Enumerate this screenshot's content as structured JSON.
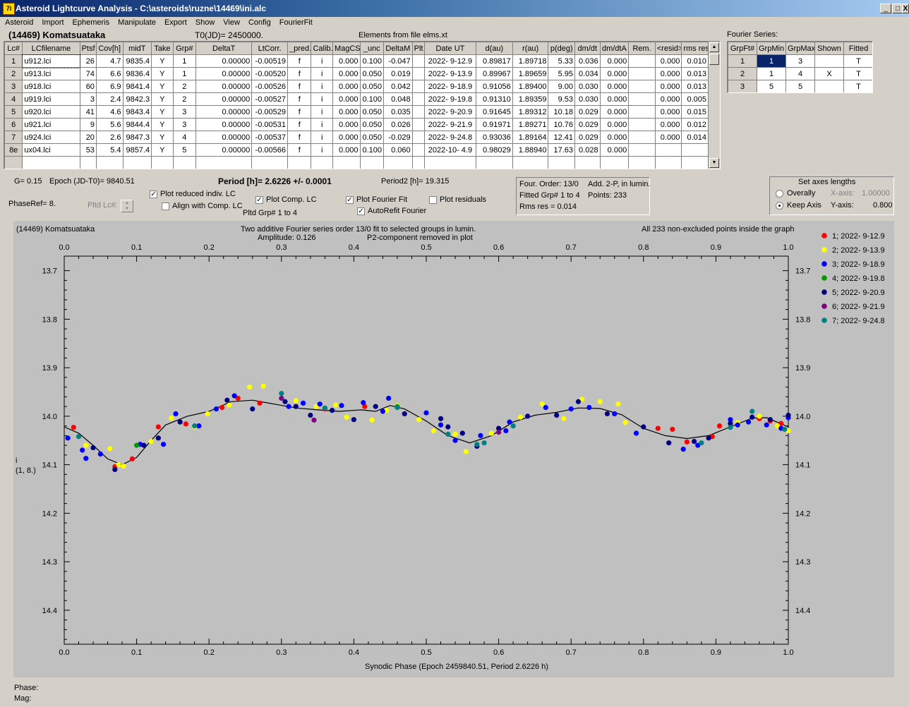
{
  "window": {
    "title": "Asteroid Lightcurve Analysis - C:\\asteroids\\ruzne\\14469\\ini.alc",
    "app_icon": "7i",
    "minimize": "_",
    "maximize": "□",
    "close": "X"
  },
  "menu": [
    "Asteroid",
    "Import",
    "Ephemeris",
    "Manipulate",
    "Export",
    "Show",
    "View",
    "Config",
    "FourierFit"
  ],
  "header": {
    "asteroid": "(14469) Komatsuataka",
    "t0": "T0(JD)= 2450000.",
    "elements": "Elements from file elms.xt",
    "fourier_label": "Fourier Series:"
  },
  "lc_table": {
    "columns": [
      "Lc#",
      "LCfilename",
      "Ptsf",
      "Cov[h]",
      "midT",
      "Take",
      "Grp#",
      "DeltaT",
      "LtCorr.",
      "_pred.",
      "Calib.",
      "MagCS",
      "_unc",
      "DeltaM",
      "Plt",
      "Date UT",
      "d(au)",
      "r(au)",
      "p(deg)",
      "dm/dt",
      "dm/dtA",
      "Rem.",
      "<resid>",
      "rms res"
    ],
    "rows": [
      [
        "1",
        "u912.lci",
        "26",
        "4.7",
        "9835.4",
        "Y",
        "1",
        "0.00000",
        "-0.00519",
        "f",
        "i",
        "0.000",
        "0.100",
        "-0.047",
        "",
        "2022- 9-12.9",
        "0.89817",
        "1.89718",
        "5.33",
        "0.036",
        "0.000",
        "",
        "0.000",
        "0.010"
      ],
      [
        "2",
        "u913.lci",
        "74",
        "6.6",
        "9836.4",
        "Y",
        "1",
        "0.00000",
        "-0.00520",
        "f",
        "i",
        "0.000",
        "0.050",
        "0.019",
        "",
        "2022- 9-13.9",
        "0.89967",
        "1.89659",
        "5.95",
        "0.034",
        "0.000",
        "",
        "0.000",
        "0.013"
      ],
      [
        "3",
        "u918.lci",
        "60",
        "6.9",
        "9841.4",
        "Y",
        "2",
        "0.00000",
        "-0.00526",
        "f",
        "i",
        "0.000",
        "0.050",
        "0.042",
        "",
        "2022- 9-18.9",
        "0.91056",
        "1.89400",
        "9.00",
        "0.030",
        "0.000",
        "",
        "0.000",
        "0.013"
      ],
      [
        "4",
        "u919.lci",
        "3",
        "2.4",
        "9842.3",
        "Y",
        "2",
        "0.00000",
        "-0.00527",
        "f",
        "i",
        "0.000",
        "0.100",
        "0.048",
        "",
        "2022- 9-19.8",
        "0.91310",
        "1.89359",
        "9.53",
        "0.030",
        "0.000",
        "",
        "0.000",
        "0.005"
      ],
      [
        "5",
        "u920.lci",
        "41",
        "4.6",
        "9843.4",
        "Y",
        "3",
        "0.00000",
        "-0.00529",
        "f",
        "i",
        "0.000",
        "0.050",
        "0.035",
        "",
        "2022- 9-20.9",
        "0.91645",
        "1.89312",
        "10.18",
        "0.029",
        "0.000",
        "",
        "0.000",
        "0.015"
      ],
      [
        "6",
        "u921.lci",
        "9",
        "5.6",
        "9844.4",
        "Y",
        "3",
        "0.00000",
        "-0.00531",
        "f",
        "i",
        "0.000",
        "0.050",
        "0.026",
        "",
        "2022- 9-21.9",
        "0.91971",
        "1.89271",
        "10.76",
        "0.029",
        "0.000",
        "",
        "0.000",
        "0.012"
      ],
      [
        "7",
        "u924.lci",
        "20",
        "2.6",
        "9847.3",
        "Y",
        "4",
        "0.00000",
        "-0.00537",
        "f",
        "i",
        "0.000",
        "0.050",
        "-0.029",
        "",
        "2022- 9-24.8",
        "0.93036",
        "1.89164",
        "12.41",
        "0.029",
        "0.000",
        "",
        "0.000",
        "0.014"
      ],
      [
        "8e",
        "ux04.lci",
        "53",
        "5.4",
        "9857.4",
        "Y",
        "5",
        "0.00000",
        "-0.00566",
        "f",
        "i",
        "0.000",
        "0.100",
        "0.060",
        "",
        "2022-10- 4.9",
        "0.98029",
        "1.88940",
        "17.63",
        "0.028",
        "0.000",
        "",
        "",
        ""
      ]
    ]
  },
  "fourier_table": {
    "columns": [
      "GrpFt#",
      "GrpMin",
      "GrpMax",
      "Shown",
      "Fitted"
    ],
    "rows": [
      [
        "1",
        "1",
        "3",
        "",
        "T"
      ],
      [
        "2",
        "1",
        "4",
        "X",
        "T"
      ],
      [
        "3",
        "5",
        "5",
        "",
        "T"
      ]
    ]
  },
  "controls": {
    "g": "G= 0.15",
    "epoch": "Epoch (JD-T0)= 9840.51",
    "period": "Period [h]= 2.6226 +/- 0.0001",
    "period2": "Period2 [h]= 19.315",
    "phaseref": "PhaseRef= 8.",
    "pltd_lc": "Pltd Lc#:",
    "plot_reduced": "Plot reduced indiv. LC",
    "align_comp": "Align with Comp. LC",
    "plot_comp": "Plot Comp. LC",
    "pltd_grp": "Pltd Grp#  1   to   4",
    "plot_fourier": "Plot Fourier Fit",
    "autorefit": "AutoRefit Fourier",
    "plot_residuals": "Plot residuals",
    "check_plot_reduced": true,
    "check_align_comp": false,
    "check_plot_comp": true,
    "check_plot_fourier": true,
    "check_autorefit": true,
    "check_plot_residuals": false
  },
  "fit_info": {
    "order": "Four. Order: 13/0",
    "add": "Add. 2-P, in lumin.",
    "fitted": "Fitted Grp# 1 to 4",
    "points": "Points: 233",
    "rms": "Rms res      = 0.014"
  },
  "axes_panel": {
    "title": "Set axes lengths",
    "overally": "Overally",
    "keep_axis": "Keep Axis",
    "x_label": "X-axis:",
    "x_value": "1.00000",
    "y_label": "Y-axis:",
    "y_value": "0.800",
    "selected": "keep_axis"
  },
  "plot": {
    "name": "(14469) Komatsuataka",
    "desc1": "Two additive Fourier series order 13/0 fit to selected groups in lumin.",
    "desc2_left": "Amplitude: 0.126",
    "desc2_right": "P2-component removed in plot",
    "right_note": "All 233 non-excluded points inside the graph",
    "ylabel_line1": "i",
    "ylabel_line2": "(1, 8.)",
    "xlabel": "Synodic Phase (Epoch 2459840.51, Period 2.6226 h)",
    "phase_label": "Phase:",
    "mag_label": "Mag:"
  },
  "chart_data": {
    "type": "scatter",
    "xlim": [
      0,
      1
    ],
    "ylim": [
      14.47,
      13.67
    ],
    "y_inverted": true,
    "xticks": [
      "0.0",
      "0.1",
      "0.2",
      "0.3",
      "0.4",
      "0.5",
      "0.6",
      "0.7",
      "0.8",
      "0.9",
      "1.0"
    ],
    "yticks": [
      "13.7",
      "13.8",
      "13.9",
      "14.0",
      "14.1",
      "14.2",
      "14.3",
      "14.4"
    ],
    "legend_position": "right",
    "series": [
      {
        "name": "1; 2022- 9-12.9",
        "color": "#ff0000",
        "points": [
          [
            0.013,
            14.023
          ],
          [
            0.07,
            14.104
          ],
          [
            0.094,
            14.088
          ],
          [
            0.13,
            14.022
          ],
          [
            0.168,
            14.016
          ],
          [
            0.218,
            13.982
          ],
          [
            0.24,
            13.963
          ],
          [
            0.27,
            13.973
          ],
          [
            0.36,
            13.985
          ],
          [
            0.415,
            13.98
          ],
          [
            0.82,
            14.025
          ],
          [
            0.84,
            14.027
          ],
          [
            0.86,
            14.053
          ],
          [
            0.895,
            14.042
          ],
          [
            0.905,
            14.02
          ],
          [
            0.96,
            14.005
          ],
          [
            0.975,
            14.01
          ],
          [
            0.99,
            14.015
          ]
        ]
      },
      {
        "name": "2; 2022- 9-13.9",
        "color": "#ffff00",
        "points": [
          [
            0.03,
            14.06
          ],
          [
            0.063,
            14.067
          ],
          [
            0.075,
            14.1
          ],
          [
            0.082,
            14.103
          ],
          [
            0.12,
            14.052
          ],
          [
            0.148,
            14.004
          ],
          [
            0.18,
            14.022
          ],
          [
            0.198,
            13.995
          ],
          [
            0.228,
            13.977
          ],
          [
            0.256,
            13.94
          ],
          [
            0.275,
            13.938
          ],
          [
            0.32,
            13.968
          ],
          [
            0.348,
            13.98
          ],
          [
            0.375,
            13.977
          ],
          [
            0.39,
            14.002
          ],
          [
            0.425,
            14.008
          ],
          [
            0.445,
            13.988
          ],
          [
            0.46,
            13.978
          ],
          [
            0.49,
            14.007
          ],
          [
            0.51,
            14.03
          ],
          [
            0.54,
            14.037
          ],
          [
            0.555,
            14.073
          ],
          [
            0.59,
            14.035
          ],
          [
            0.63,
            14.002
          ],
          [
            0.66,
            13.975
          ],
          [
            0.69,
            14.005
          ],
          [
            0.715,
            13.965
          ],
          [
            0.74,
            13.97
          ],
          [
            0.765,
            13.975
          ],
          [
            0.775,
            14.013
          ],
          [
            0.93,
            14.013
          ],
          [
            0.96,
            14.0
          ],
          [
            0.985,
            14.02
          ],
          [
            1.0,
            14.03
          ]
        ]
      },
      {
        "name": "3; 2022- 9-18.9",
        "color": "#0000ff",
        "points": [
          [
            0.005,
            14.045
          ],
          [
            0.025,
            14.07
          ],
          [
            0.03,
            14.087
          ],
          [
            0.05,
            14.078
          ],
          [
            0.105,
            14.058
          ],
          [
            0.137,
            14.058
          ],
          [
            0.154,
            13.995
          ],
          [
            0.186,
            14.02
          ],
          [
            0.21,
            13.985
          ],
          [
            0.235,
            13.958
          ],
          [
            0.31,
            13.98
          ],
          [
            0.33,
            13.973
          ],
          [
            0.353,
            13.975
          ],
          [
            0.383,
            13.978
          ],
          [
            0.413,
            13.972
          ],
          [
            0.44,
            13.99
          ],
          [
            0.448,
            13.963
          ],
          [
            0.5,
            13.993
          ],
          [
            0.52,
            14.018
          ],
          [
            0.54,
            14.05
          ],
          [
            0.575,
            14.04
          ],
          [
            0.61,
            14.03
          ],
          [
            0.615,
            14.012
          ],
          [
            0.665,
            13.982
          ],
          [
            0.7,
            13.985
          ],
          [
            0.725,
            13.982
          ],
          [
            0.76,
            13.995
          ],
          [
            0.79,
            14.035
          ],
          [
            0.855,
            14.068
          ],
          [
            0.875,
            14.06
          ],
          [
            0.92,
            14.007
          ],
          [
            0.93,
            14.018
          ],
          [
            0.945,
            14.012
          ],
          [
            0.97,
            14.018
          ],
          [
            0.99,
            14.025
          ],
          [
            1.0,
            14.003
          ]
        ]
      },
      {
        "name": "4; 2022- 9-19.8",
        "color": "#009900",
        "points": [
          [
            0.1,
            14.06
          ],
          [
            0.46,
            13.98
          ]
        ]
      },
      {
        "name": "5; 2022- 9-20.9",
        "color": "#000080",
        "points": [
          [
            0.04,
            14.065
          ],
          [
            0.07,
            14.11
          ],
          [
            0.11,
            14.06
          ],
          [
            0.13,
            14.045
          ],
          [
            0.16,
            14.012
          ],
          [
            0.225,
            13.967
          ],
          [
            0.26,
            13.985
          ],
          [
            0.305,
            13.97
          ],
          [
            0.32,
            13.98
          ],
          [
            0.34,
            13.998
          ],
          [
            0.37,
            13.988
          ],
          [
            0.4,
            14.007
          ],
          [
            0.43,
            13.98
          ],
          [
            0.47,
            13.995
          ],
          [
            0.52,
            14.005
          ],
          [
            0.53,
            14.022
          ],
          [
            0.55,
            14.035
          ],
          [
            0.57,
            14.062
          ],
          [
            0.6,
            14.025
          ],
          [
            0.64,
            14.0
          ],
          [
            0.68,
            13.998
          ],
          [
            0.71,
            13.97
          ],
          [
            0.75,
            13.995
          ],
          [
            0.8,
            14.022
          ],
          [
            0.835,
            14.055
          ],
          [
            0.87,
            14.052
          ],
          [
            0.89,
            14.045
          ],
          [
            0.92,
            14.015
          ],
          [
            0.95,
            14.002
          ],
          [
            0.975,
            14.007
          ],
          [
            1.0,
            13.998
          ]
        ]
      },
      {
        "name": "6; 2022- 9-21.9",
        "color": "#800080",
        "points": [
          [
            0.3,
            13.963
          ],
          [
            0.345,
            14.008
          ],
          [
            0.6,
            14.033
          ]
        ]
      },
      {
        "name": "7; 2022- 9-24.8",
        "color": "#008080",
        "points": [
          [
            0.02,
            14.042
          ],
          [
            0.18,
            14.02
          ],
          [
            0.3,
            13.953
          ],
          [
            0.36,
            13.983
          ],
          [
            0.46,
            13.982
          ],
          [
            0.53,
            14.037
          ],
          [
            0.57,
            14.058
          ],
          [
            0.58,
            14.055
          ],
          [
            0.62,
            14.02
          ],
          [
            0.88,
            14.055
          ],
          [
            0.92,
            14.023
          ],
          [
            0.95,
            13.99
          ],
          [
            0.995,
            14.027
          ]
        ]
      }
    ],
    "fit_curve": [
      [
        0.0,
        14.022
      ],
      [
        0.02,
        14.035
      ],
      [
        0.04,
        14.06
      ],
      [
        0.06,
        14.088
      ],
      [
        0.08,
        14.1
      ],
      [
        0.1,
        14.085
      ],
      [
        0.12,
        14.05
      ],
      [
        0.14,
        14.018
      ],
      [
        0.17,
        14.0
      ],
      [
        0.2,
        13.99
      ],
      [
        0.23,
        13.97
      ],
      [
        0.26,
        13.967
      ],
      [
        0.29,
        13.975
      ],
      [
        0.32,
        13.983
      ],
      [
        0.35,
        13.987
      ],
      [
        0.38,
        13.99
      ],
      [
        0.41,
        13.987
      ],
      [
        0.43,
        13.99
      ],
      [
        0.45,
        13.978
      ],
      [
        0.47,
        13.985
      ],
      [
        0.5,
        14.01
      ],
      [
        0.53,
        14.04
      ],
      [
        0.56,
        14.055
      ],
      [
        0.59,
        14.04
      ],
      [
        0.62,
        14.012
      ],
      [
        0.65,
        13.998
      ],
      [
        0.68,
        13.992
      ],
      [
        0.71,
        13.983
      ],
      [
        0.74,
        13.984
      ],
      [
        0.77,
        13.997
      ],
      [
        0.8,
        14.025
      ],
      [
        0.83,
        14.04
      ],
      [
        0.86,
        14.046
      ],
      [
        0.89,
        14.04
      ],
      [
        0.92,
        14.022
      ],
      [
        0.95,
        14.004
      ],
      [
        0.97,
        14.003
      ],
      [
        1.0,
        14.022
      ]
    ]
  }
}
